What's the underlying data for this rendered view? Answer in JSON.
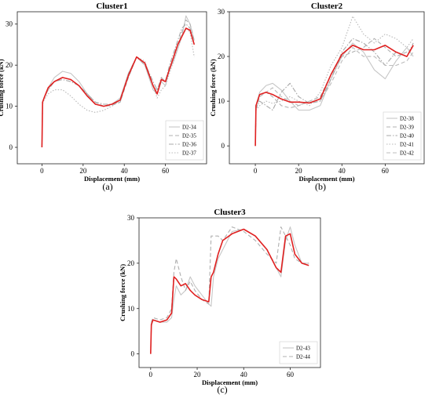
{
  "figure": {
    "panels": [
      {
        "caption": "(a)"
      },
      {
        "caption": "(b)"
      },
      {
        "caption": "(c)"
      }
    ]
  },
  "chart_data": [
    {
      "type": "line",
      "title": "Cluster1",
      "xlabel": "Displacement (mm)",
      "ylabel": "Crushing force (kN)",
      "xlim": [
        -12,
        80
      ],
      "ylim": [
        -4,
        33
      ],
      "xticks": [
        0,
        20,
        40,
        60
      ],
      "yticks": [
        0,
        10,
        20,
        30
      ],
      "grid": false,
      "legend": "bottom-right",
      "mean_color": "#e02020",
      "series": [
        {
          "name": "D2-34",
          "style": "solid",
          "color": "#c6c6c6",
          "x": [
            0,
            0.3,
            1,
            3,
            6,
            10,
            14,
            18,
            22,
            26,
            30,
            34,
            38,
            42,
            46,
            50,
            54,
            56,
            58,
            60,
            62,
            64,
            66,
            68,
            70,
            72,
            74
          ],
          "y": [
            0,
            11,
            12,
            14.5,
            17,
            18.5,
            18,
            16,
            13,
            10.5,
            10,
            10.5,
            12,
            18,
            22,
            20,
            14,
            13,
            16,
            15,
            19,
            21,
            24,
            27,
            32,
            30,
            26
          ]
        },
        {
          "name": "D2-35",
          "style": "dash",
          "color": "#b0b0b0",
          "x": [
            0,
            0.3,
            1,
            3,
            6,
            10,
            14,
            18,
            22,
            26,
            30,
            34,
            38,
            42,
            46,
            50,
            54,
            56,
            58,
            60,
            62,
            64,
            66,
            68,
            70,
            72,
            74
          ],
          "y": [
            0,
            11,
            12,
            14,
            16,
            17,
            16.5,
            15,
            13,
            11,
            10,
            10.2,
            11,
            17,
            22,
            20,
            15,
            14,
            16.5,
            16,
            19,
            22,
            25,
            28,
            31,
            30,
            26
          ]
        },
        {
          "name": "D2-36",
          "style": "dashdot",
          "color": "#a8a8a8",
          "x": [
            0,
            0.3,
            1,
            3,
            6,
            10,
            14,
            18,
            22,
            26,
            30,
            34,
            38,
            42,
            46,
            50,
            54,
            56,
            58,
            60,
            62,
            64,
            66,
            68,
            70,
            72,
            74
          ],
          "y": [
            0,
            11,
            12,
            14,
            16,
            16.5,
            16,
            15,
            13,
            11,
            10.5,
            10.5,
            11,
            18,
            22,
            20.5,
            16,
            14,
            17,
            16,
            20,
            23,
            26,
            29,
            30,
            29,
            25
          ]
        },
        {
          "name": "D2-37",
          "style": "dot",
          "color": "#b8b8b8",
          "x": [
            0,
            0.3,
            1,
            3,
            6,
            10,
            14,
            18,
            22,
            26,
            30,
            34,
            38,
            42,
            46,
            50,
            54,
            56,
            58,
            60,
            62,
            64,
            66,
            68,
            70,
            72,
            74
          ],
          "y": [
            0,
            10.5,
            11.5,
            13,
            14,
            14,
            12.5,
            10.5,
            9,
            8.5,
            9,
            10,
            11.5,
            17,
            22,
            21,
            15,
            12,
            14,
            15,
            18,
            21,
            24,
            27,
            29,
            28,
            22
          ]
        },
        {
          "name": "",
          "style": "solid",
          "color": "#e02020",
          "x": [
            0,
            0.3,
            1,
            3,
            6,
            10,
            14,
            18,
            22,
            26,
            30,
            34,
            38,
            42,
            46,
            50,
            54,
            56,
            58,
            60,
            62,
            64,
            66,
            68,
            70,
            72,
            74
          ],
          "y": [
            0,
            11,
            12,
            14.5,
            16,
            17,
            16.5,
            15,
            12.5,
            10.5,
            10,
            10.5,
            11.5,
            17.5,
            22,
            20.5,
            15,
            13,
            16.5,
            16,
            19,
            22,
            25,
            27,
            29,
            28.5,
            25
          ]
        }
      ]
    },
    {
      "type": "line",
      "title": "Cluster2",
      "xlabel": "Displacement (mm)",
      "ylabel": "Crushing force (kN)",
      "xlim": [
        -12,
        78
      ],
      "ylim": [
        -4,
        30
      ],
      "xticks": [
        0,
        20,
        40,
        60
      ],
      "yticks": [
        0,
        10,
        20,
        30
      ],
      "grid": false,
      "legend": "bottom-right",
      "mean_color": "#e02020",
      "series": [
        {
          "name": "D2-38",
          "style": "solid",
          "color": "#c6c6c6",
          "x": [
            0,
            0.3,
            2,
            5,
            8,
            12,
            16,
            20,
            25,
            30,
            35,
            40,
            45,
            50,
            55,
            60,
            65,
            70,
            73
          ],
          "y": [
            0,
            9,
            12,
            13.5,
            14,
            12.5,
            10,
            8,
            8,
            9,
            15,
            20,
            23,
            21,
            17,
            15,
            19,
            22,
            20
          ]
        },
        {
          "name": "D2-39",
          "style": "dash",
          "color": "#b0b0b0",
          "x": [
            0,
            0.3,
            2,
            5,
            8,
            12,
            16,
            20,
            25,
            30,
            35,
            40,
            45,
            50,
            55,
            60,
            65,
            70,
            73
          ],
          "y": [
            0,
            8,
            11,
            12,
            11,
            9,
            8.5,
            9,
            10,
            11,
            16,
            20,
            21,
            22,
            24,
            22,
            20,
            21,
            22
          ]
        },
        {
          "name": "D2-40",
          "style": "dashdot",
          "color": "#a8a8a8",
          "x": [
            0,
            0.3,
            2,
            5,
            8,
            12,
            16,
            20,
            25,
            30,
            35,
            40,
            45,
            50,
            55,
            60,
            65,
            70,
            73
          ],
          "y": [
            0,
            8.5,
            10,
            9,
            8,
            12,
            14,
            11,
            9.5,
            10,
            15,
            21,
            24,
            23,
            21,
            18,
            21,
            20,
            23
          ]
        },
        {
          "name": "D2-41",
          "style": "dot",
          "color": "#b8b8b8",
          "x": [
            0,
            0.3,
            2,
            5,
            8,
            12,
            16,
            20,
            25,
            30,
            35,
            40,
            45,
            50,
            55,
            60,
            65,
            70,
            73
          ],
          "y": [
            0,
            8,
            9,
            10,
            9.5,
            10,
            11,
            10,
            9,
            12,
            18,
            22,
            29,
            25,
            23,
            25,
            24,
            22,
            24
          ]
        },
        {
          "name": "D2-42",
          "style": "dash",
          "color": "#bcbcbc",
          "x": [
            0,
            0.3,
            2,
            5,
            8,
            12,
            16,
            20,
            25,
            30,
            35,
            40,
            45,
            50,
            55,
            60,
            65,
            70,
            73
          ],
          "y": [
            0,
            9,
            11,
            12,
            13,
            11,
            10,
            9,
            10,
            10,
            14,
            19,
            22,
            20,
            20,
            18,
            18,
            19,
            21
          ]
        },
        {
          "name": "",
          "style": "solid",
          "color": "#e02020",
          "x": [
            0,
            0.3,
            2,
            5,
            8,
            12,
            16,
            20,
            25,
            30,
            35,
            40,
            45,
            50,
            55,
            60,
            65,
            70,
            73
          ],
          "y": [
            0,
            9,
            11.5,
            12,
            11.5,
            10.5,
            9.8,
            9.8,
            9.6,
            10.5,
            16,
            20.5,
            22.5,
            21.5,
            21.5,
            22.5,
            21,
            20,
            22.5
          ]
        }
      ]
    },
    {
      "type": "line",
      "title": "Cluster3",
      "xlabel": "Displacement (mm)",
      "ylabel": "Crushing force (kN)",
      "xlim": [
        -5,
        73
      ],
      "ylim": [
        -3,
        30
      ],
      "xticks": [
        0,
        20,
        40,
        60
      ],
      "yticks": [
        0,
        10,
        20,
        30
      ],
      "grid": false,
      "legend": "bottom-right",
      "mean_color": "#e02020",
      "series": [
        {
          "name": "D2-43",
          "style": "solid",
          "color": "#c6c6c6",
          "x": [
            0,
            0.3,
            1,
            4,
            7,
            9,
            10,
            11,
            13,
            15,
            17,
            19,
            22,
            25,
            26,
            27,
            29,
            31,
            35,
            40,
            45,
            50,
            54,
            56,
            58,
            60,
            62,
            65,
            68
          ],
          "y": [
            0,
            6,
            7.5,
            7,
            7,
            8,
            12,
            15,
            13,
            14,
            17,
            15,
            13,
            11,
            10.5,
            17,
            21,
            23,
            27,
            27.5,
            26,
            23,
            19,
            17,
            25,
            28,
            24,
            20,
            20
          ]
        },
        {
          "name": "D2-44",
          "style": "dash",
          "color": "#b0b0b0",
          "x": [
            0,
            0.3,
            1,
            4,
            7,
            9,
            10,
            11,
            13,
            15,
            17,
            19,
            22,
            25,
            26,
            27,
            29,
            31,
            35,
            40,
            45,
            50,
            54,
            56,
            58,
            60,
            62,
            65,
            68
          ],
          "y": [
            0,
            7,
            8,
            7.5,
            8,
            10,
            18,
            21,
            17,
            14,
            16,
            14,
            12,
            11,
            26,
            26,
            26,
            25,
            28,
            27,
            25,
            22,
            20,
            28,
            26,
            24,
            21,
            20,
            20
          ]
        },
        {
          "name": "",
          "style": "solid",
          "color": "#e02020",
          "x": [
            0,
            0.3,
            1,
            4,
            7,
            9,
            10,
            11,
            13,
            15,
            17,
            19,
            22,
            25,
            26,
            27,
            29,
            31,
            35,
            40,
            45,
            50,
            54,
            56,
            58,
            60,
            62,
            65,
            68
          ],
          "y": [
            0,
            6.5,
            7.5,
            7,
            7.5,
            9,
            17,
            16.5,
            15,
            15.5,
            14,
            13,
            12,
            11.5,
            17,
            18,
            22,
            25,
            26.5,
            27.5,
            26,
            23,
            19,
            18,
            26,
            26.5,
            22,
            20,
            19.5
          ]
        }
      ]
    }
  ]
}
